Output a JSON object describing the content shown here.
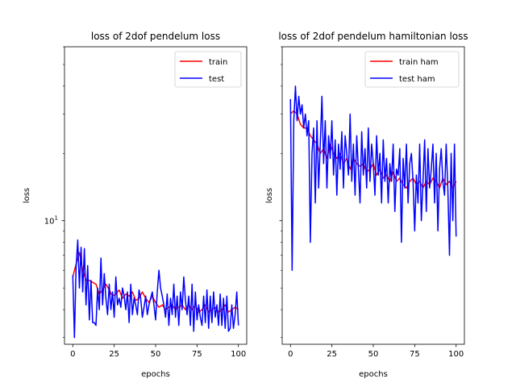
{
  "chart_data": [
    {
      "type": "line",
      "title": "loss of 2dof pendelum loss",
      "xlabel": "epochs",
      "ylabel": "loss",
      "xlim": [
        -5,
        105
      ],
      "ylim": [
        2.8,
        60
      ],
      "yscale": "log",
      "xticks": [
        0,
        25,
        50,
        75,
        100
      ],
      "ytick_major_labels": [
        {
          "value": 10,
          "text": "10",
          "exp": "1"
        }
      ],
      "legend": "top-right",
      "grid": false,
      "series": [
        {
          "name": "train",
          "color": "#ff0000",
          "x": [
            0,
            2,
            4,
            6,
            8,
            10,
            12,
            14,
            16,
            18,
            20,
            22,
            24,
            26,
            28,
            30,
            32,
            34,
            36,
            38,
            40,
            42,
            44,
            46,
            48,
            50,
            52,
            54,
            56,
            58,
            60,
            62,
            64,
            66,
            68,
            70,
            72,
            74,
            76,
            78,
            80,
            82,
            84,
            86,
            88,
            90,
            92,
            94,
            96,
            98,
            100
          ],
          "values": [
            5.6,
            6.4,
            7.2,
            6.0,
            5.4,
            5.4,
            5.3,
            5.2,
            4.7,
            4.9,
            5.2,
            4.9,
            4.6,
            4.7,
            4.9,
            4.5,
            4.7,
            4.6,
            4.8,
            4.4,
            4.5,
            4.8,
            4.5,
            4.3,
            4.6,
            4.3,
            4.1,
            4.2,
            4.0,
            4.1,
            4.2,
            4.0,
            4.1,
            4.2,
            4.0,
            4.2,
            4.0,
            4.2,
            3.9,
            4.0,
            4.2,
            3.9,
            4.0,
            4.1,
            3.9,
            4.0,
            4.2,
            3.9,
            4.0,
            4.1,
            4.0
          ]
        },
        {
          "name": "test",
          "color": "#0000ff",
          "x": [
            0,
            1,
            2,
            3,
            4,
            5,
            6,
            7,
            8,
            9,
            10,
            11,
            12,
            13,
            14,
            15,
            16,
            17,
            18,
            19,
            20,
            21,
            22,
            23,
            24,
            25,
            26,
            27,
            28,
            29,
            30,
            31,
            32,
            33,
            34,
            35,
            36,
            37,
            38,
            39,
            40,
            41,
            42,
            43,
            44,
            45,
            46,
            47,
            48,
            49,
            50,
            51,
            52,
            53,
            54,
            55,
            56,
            57,
            58,
            59,
            60,
            61,
            62,
            63,
            64,
            65,
            66,
            67,
            68,
            69,
            70,
            71,
            72,
            73,
            74,
            75,
            76,
            77,
            78,
            79,
            80,
            81,
            82,
            83,
            84,
            85,
            86,
            87,
            88,
            89,
            90,
            91,
            92,
            93,
            94,
            95,
            96,
            97,
            98,
            99,
            100
          ],
          "values": [
            5.7,
            3.0,
            6.2,
            8.2,
            5.0,
            7.6,
            4.8,
            7.5,
            4.2,
            6.3,
            3.6,
            5.4,
            3.5,
            3.5,
            3.4,
            5.0,
            4.0,
            6.8,
            4.2,
            5.8,
            4.5,
            3.8,
            5.2,
            4.0,
            4.8,
            3.7,
            5.6,
            4.2,
            4.5,
            4.1,
            5.0,
            4.6,
            4.0,
            4.8,
            3.5,
            5.2,
            3.8,
            4.5,
            4.2,
            3.8,
            4.9,
            4.5,
            3.7,
            4.1,
            4.6,
            3.8,
            4.2,
            4.5,
            4.8,
            4.2,
            3.6,
            4.8,
            6.0,
            5.0,
            4.6,
            4.2,
            3.7,
            4.7,
            3.4,
            4.5,
            3.8,
            5.2,
            3.7,
            4.6,
            3.4,
            4.8,
            4.0,
            5.6,
            4.4,
            3.8,
            4.6,
            3.4,
            5.2,
            3.2,
            4.8,
            3.6,
            4.2,
            3.7,
            3.4,
            4.6,
            3.5,
            4.9,
            3.3,
            4.6,
            3.5,
            4.8,
            3.7,
            4.2,
            3.4,
            4.7,
            3.4,
            4.5,
            3.3,
            4.6,
            3.2,
            3.3,
            4.2,
            3.3,
            3.8,
            4.8,
            3.4
          ]
        }
      ]
    },
    {
      "type": "line",
      "title": "loss of 2dof pendelum hamiltonian loss",
      "xlabel": "epochs",
      "ylabel": "loss",
      "xlim": [
        -5,
        105
      ],
      "ylim": [
        2.8,
        60
      ],
      "yscale": "log",
      "xticks": [
        0,
        25,
        50,
        75,
        100
      ],
      "legend": "top-right",
      "grid": false,
      "series": [
        {
          "name": "train ham",
          "color": "#ff0000",
          "x": [
            0,
            2,
            4,
            6,
            8,
            10,
            12,
            14,
            16,
            18,
            20,
            22,
            24,
            26,
            28,
            30,
            32,
            34,
            36,
            38,
            40,
            42,
            44,
            46,
            48,
            50,
            52,
            54,
            56,
            58,
            60,
            62,
            64,
            66,
            68,
            70,
            72,
            74,
            76,
            78,
            80,
            82,
            84,
            86,
            88,
            90,
            92,
            94,
            96,
            98,
            100
          ],
          "values": [
            30.0,
            31.0,
            30.0,
            27.0,
            26.0,
            26.0,
            24.0,
            23.0,
            22.0,
            20.0,
            21.0,
            19.0,
            22.0,
            20.0,
            19.0,
            20.0,
            18.0,
            19.0,
            17.0,
            19.0,
            18.0,
            17.5,
            18.0,
            16.5,
            17.0,
            18.0,
            16.0,
            17.0,
            15.5,
            16.0,
            15.0,
            16.5,
            15.0,
            15.5,
            14.5,
            14.0,
            15.0,
            15.5,
            14.5,
            15.0,
            14.0,
            15.0,
            14.5,
            15.5,
            15.0,
            14.0,
            15.5,
            14.5,
            15.0,
            14.0,
            15.0
          ]
        },
        {
          "name": "test ham",
          "color": "#0000ff",
          "x": [
            0,
            1,
            2,
            3,
            4,
            5,
            6,
            7,
            8,
            9,
            10,
            11,
            12,
            13,
            14,
            15,
            16,
            17,
            18,
            19,
            20,
            21,
            22,
            23,
            24,
            25,
            26,
            27,
            28,
            29,
            30,
            31,
            32,
            33,
            34,
            35,
            36,
            37,
            38,
            39,
            40,
            41,
            42,
            43,
            44,
            45,
            46,
            47,
            48,
            49,
            50,
            51,
            52,
            53,
            54,
            55,
            56,
            57,
            58,
            59,
            60,
            61,
            62,
            63,
            64,
            65,
            66,
            67,
            68,
            69,
            70,
            71,
            72,
            73,
            74,
            75,
            76,
            77,
            78,
            79,
            80,
            81,
            82,
            83,
            84,
            85,
            86,
            87,
            88,
            89,
            90,
            91,
            92,
            93,
            94,
            95,
            96,
            97,
            98,
            99,
            100
          ],
          "values": [
            35.0,
            6.0,
            28.0,
            40.0,
            28.0,
            36.0,
            30.0,
            33.0,
            26.0,
            30.0,
            24.0,
            28.0,
            8.0,
            20.0,
            26.0,
            12.0,
            28.0,
            14.0,
            22.0,
            36.0,
            18.0,
            28.0,
            14.0,
            24.0,
            19.0,
            28.0,
            16.0,
            23.0,
            13.0,
            22.0,
            17.0,
            25.0,
            14.0,
            24.0,
            20.0,
            16.0,
            30.0,
            15.0,
            22.0,
            13.0,
            24.0,
            17.0,
            12.0,
            25.0,
            16.0,
            21.0,
            14.0,
            26.0,
            15.0,
            22.0,
            18.0,
            13.0,
            24.0,
            16.0,
            20.0,
            12.0,
            23.0,
            15.0,
            19.0,
            12.0,
            18.0,
            15.0,
            22.0,
            11.0,
            17.0,
            16.0,
            21.0,
            8.0,
            19.0,
            14.0,
            22.0,
            12.0,
            18.0,
            20.0,
            15.0,
            9.0,
            16.0,
            12.0,
            22.0,
            10.0,
            15.0,
            23.0,
            11.0,
            21.0,
            14.0,
            17.0,
            22.0,
            12.0,
            20.0,
            9.0,
            17.0,
            21.0,
            15.0,
            13.0,
            22.0,
            14.0,
            7.0,
            20.0,
            10.0,
            22.0,
            8.5
          ]
        }
      ]
    }
  ]
}
